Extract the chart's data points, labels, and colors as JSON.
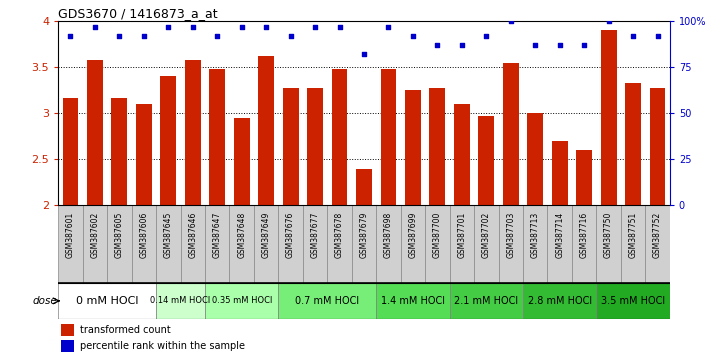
{
  "title": "GDS3670 / 1416873_a_at",
  "samples": [
    "GSM387601",
    "GSM387602",
    "GSM387605",
    "GSM387606",
    "GSM387645",
    "GSM387646",
    "GSM387647",
    "GSM387648",
    "GSM387649",
    "GSM387676",
    "GSM387677",
    "GSM387678",
    "GSM387679",
    "GSM387698",
    "GSM387699",
    "GSM387700",
    "GSM387701",
    "GSM387702",
    "GSM387703",
    "GSM387713",
    "GSM387714",
    "GSM387716",
    "GSM387750",
    "GSM387751",
    "GSM387752"
  ],
  "bar_values": [
    3.17,
    3.58,
    3.17,
    3.1,
    3.4,
    3.58,
    3.48,
    2.95,
    3.62,
    3.28,
    3.27,
    3.48,
    2.4,
    3.48,
    3.25,
    3.28,
    3.1,
    2.97,
    3.55,
    3.0,
    2.7,
    2.6,
    3.9,
    3.33,
    3.28
  ],
  "percentile_values": [
    92,
    97,
    92,
    92,
    97,
    97,
    92,
    97,
    97,
    92,
    97,
    97,
    82,
    97,
    92,
    87,
    87,
    92,
    100,
    87,
    87,
    87,
    100,
    92,
    92
  ],
  "ylim": [
    2.0,
    4.0
  ],
  "yticks": [
    2.0,
    2.5,
    3.0,
    3.5,
    4.0
  ],
  "bar_color": "#cc2200",
  "dot_color": "#0000cc",
  "background_color": "#ffffff",
  "dose_groups": [
    {
      "label": "0 mM HOCl",
      "start": 0,
      "end": 4,
      "color": "#ffffff",
      "fontsize": 8
    },
    {
      "label": "0.14 mM HOCl",
      "start": 4,
      "end": 6,
      "color": "#ccffcc",
      "fontsize": 6
    },
    {
      "label": "0.35 mM HOCl",
      "start": 6,
      "end": 9,
      "color": "#aaffaa",
      "fontsize": 6
    },
    {
      "label": "0.7 mM HOCl",
      "start": 9,
      "end": 13,
      "color": "#77ee77",
      "fontsize": 7
    },
    {
      "label": "1.4 mM HOCl",
      "start": 13,
      "end": 16,
      "color": "#55dd55",
      "fontsize": 7
    },
    {
      "label": "2.1 mM HOCl",
      "start": 16,
      "end": 19,
      "color": "#44cc44",
      "fontsize": 7
    },
    {
      "label": "2.8 mM HOCl",
      "start": 19,
      "end": 22,
      "color": "#33bb33",
      "fontsize": 7
    },
    {
      "label": "3.5 mM HOCl",
      "start": 22,
      "end": 25,
      "color": "#22aa22",
      "fontsize": 7
    }
  ],
  "legend_bar_label": "transformed count",
  "legend_dot_label": "percentile rank within the sample",
  "dose_label": "dose",
  "right_yticks": [
    0,
    25,
    50,
    75,
    100
  ],
  "right_yticklabels": [
    "0",
    "25",
    "50",
    "75",
    "100%"
  ],
  "grid_lines": [
    2.5,
    3.0,
    3.5
  ],
  "sample_label_bg": "#d0d0d0",
  "sample_label_border": "#888888"
}
